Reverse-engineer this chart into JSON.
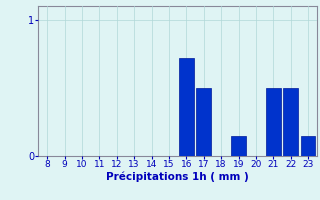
{
  "hours": [
    8,
    9,
    10,
    11,
    12,
    13,
    14,
    15,
    16,
    17,
    18,
    19,
    20,
    21,
    22,
    23
  ],
  "values": [
    0,
    0,
    0,
    0,
    0,
    0,
    0,
    0,
    0.72,
    0.5,
    0,
    0.15,
    0,
    0.5,
    0.5,
    0.15
  ],
  "bar_color": "#0033cc",
  "bar_edge_color": "#001a99",
  "background_color": "#dff4f4",
  "grid_color": "#b0d8d8",
  "axis_color": "#888899",
  "text_color": "#0000bb",
  "xlabel": "Précipitations 1h ( mm )",
  "ylim": [
    0,
    1.1
  ],
  "xlim": [
    7.5,
    23.5
  ],
  "yticks": [
    0,
    1
  ],
  "xticks": [
    8,
    9,
    10,
    11,
    12,
    13,
    14,
    15,
    16,
    17,
    18,
    19,
    20,
    21,
    22,
    23
  ],
  "bar_width": 0.85,
  "figsize": [
    3.2,
    2.0
  ],
  "dpi": 100
}
